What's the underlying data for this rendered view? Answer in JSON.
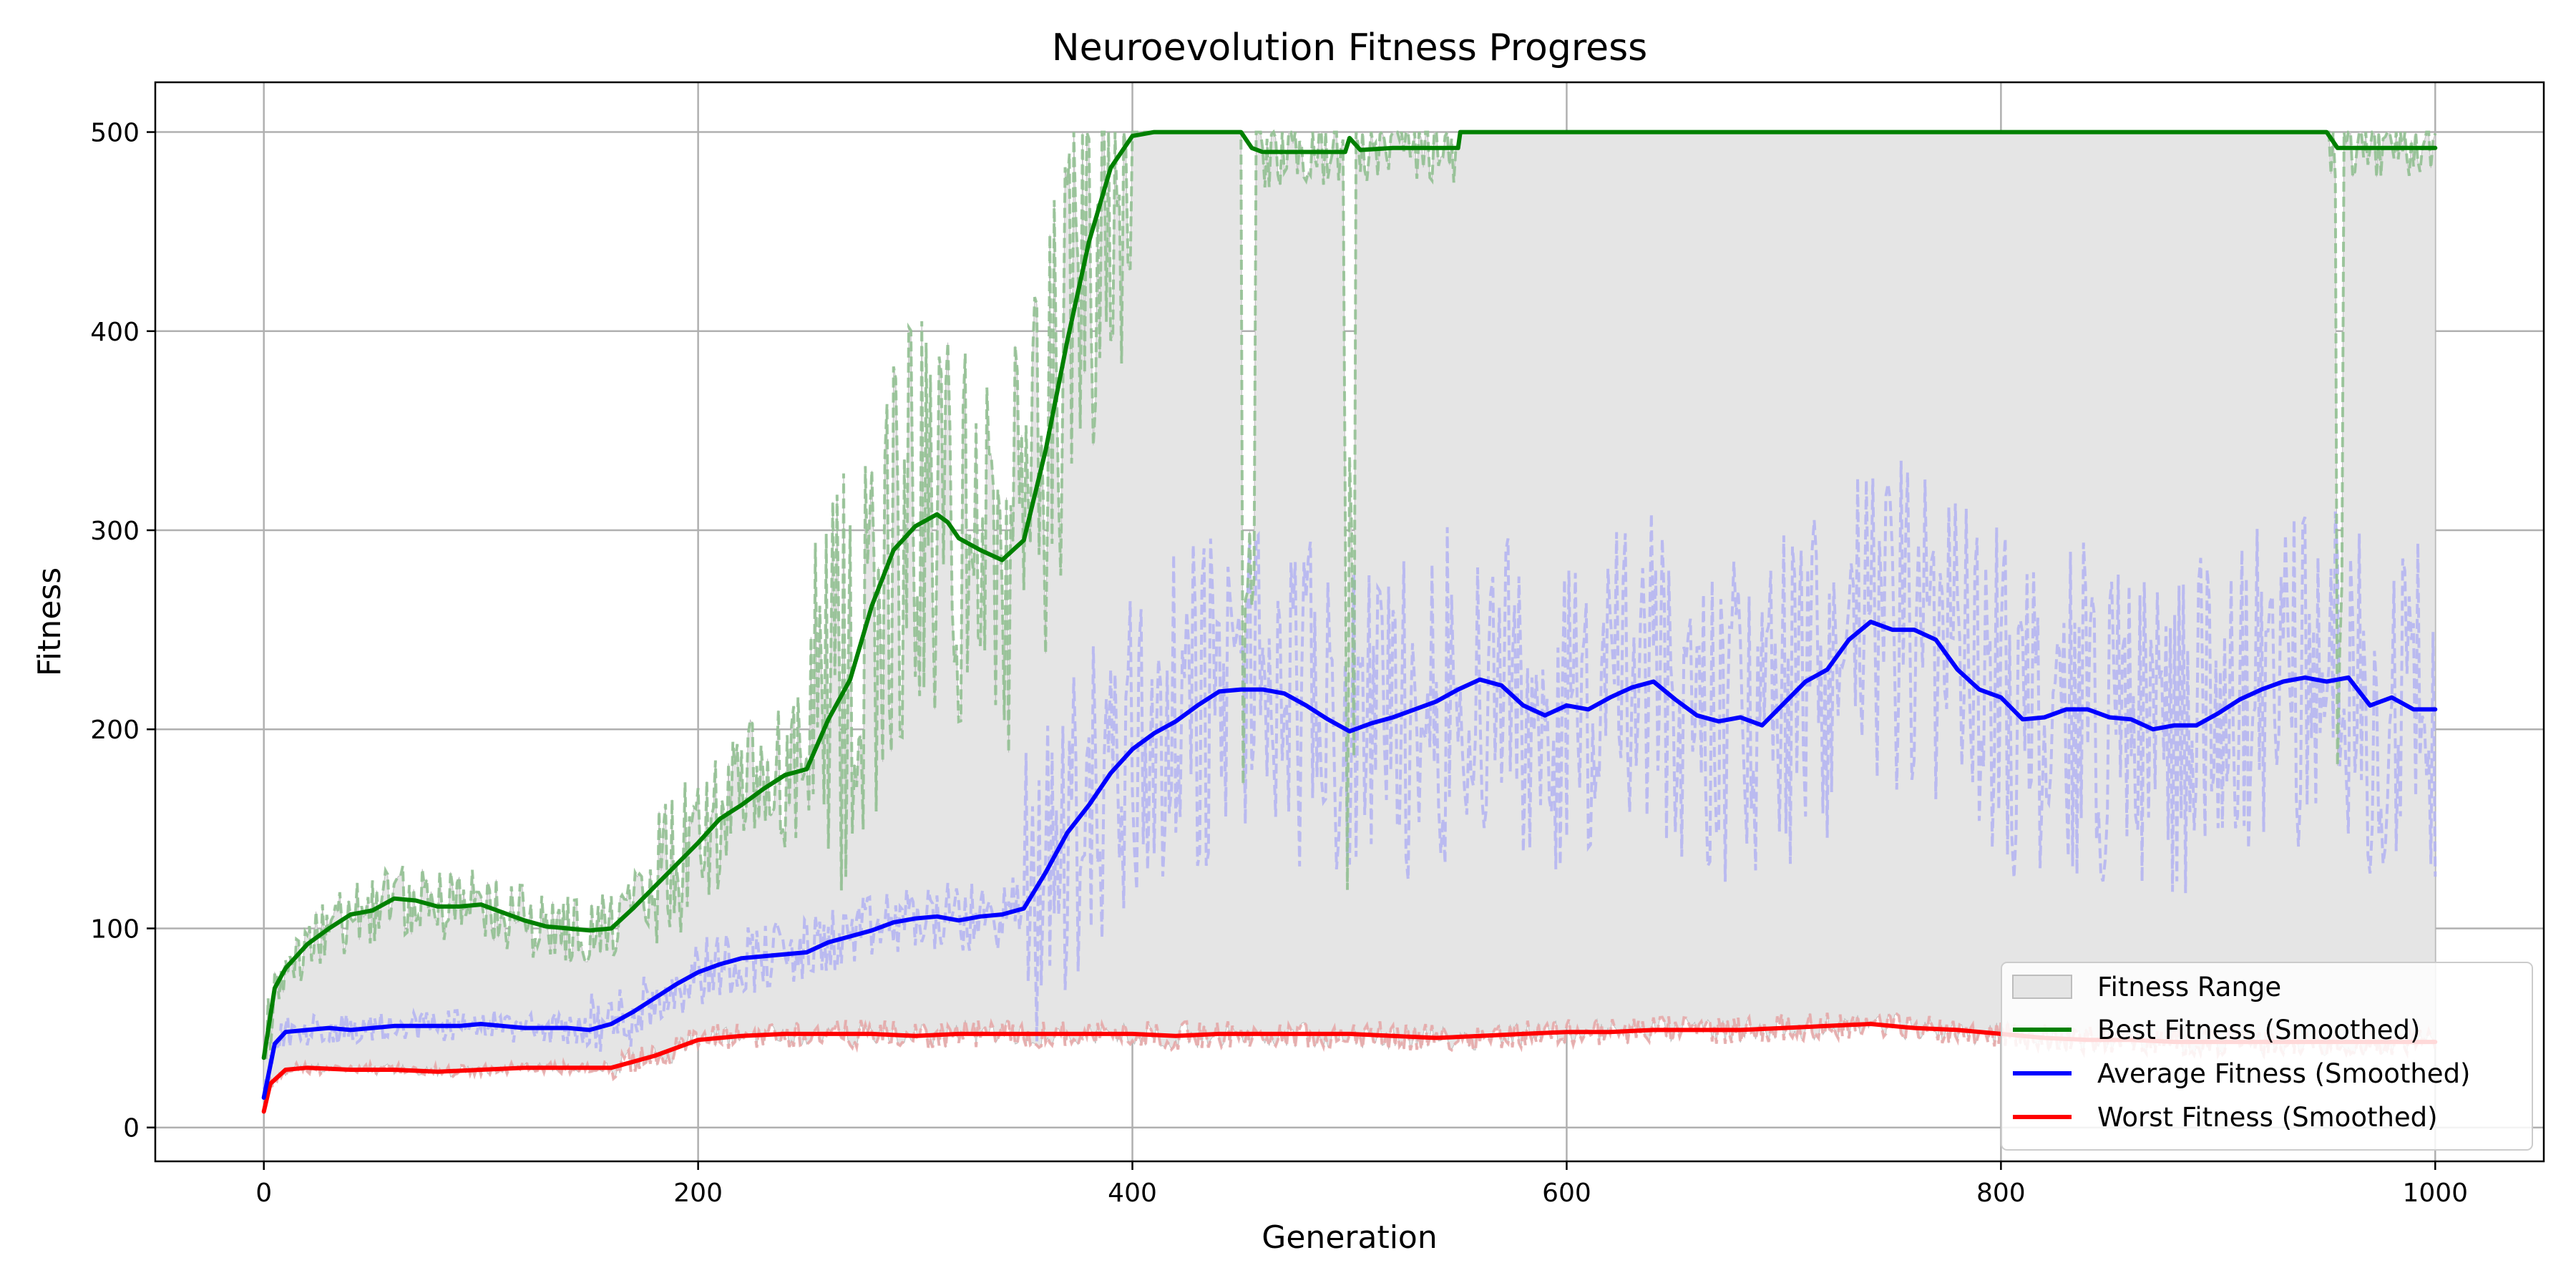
{
  "chart_data": {
    "type": "line",
    "title": "Neuroevolution Fitness Progress",
    "xlabel": "Generation",
    "ylabel": "Fitness",
    "xlim": [
      -50,
      1050
    ],
    "ylim": [
      -17,
      525
    ],
    "xticks": [
      0,
      200,
      400,
      600,
      800,
      1000
    ],
    "yticks": [
      0,
      100,
      200,
      300,
      400,
      500
    ],
    "grid": true,
    "legend_position": "lower-right",
    "legend": [
      "Fitness Range",
      "Best Fitness (Smoothed)",
      "Average Fitness (Smoothed)",
      "Worst Fitness (Smoothed)"
    ],
    "fill": {
      "name": "Fitness Range",
      "color": "#e5e5e5",
      "edge": "#bdbdbd"
    },
    "series": [
      {
        "name": "Best Fitness (Smoothed)",
        "color": "#008000",
        "raw_color": "#8fbf8f",
        "x": [
          0,
          5,
          10,
          20,
          30,
          40,
          50,
          60,
          70,
          80,
          90,
          100,
          110,
          120,
          130,
          140,
          150,
          160,
          170,
          180,
          190,
          200,
          210,
          220,
          230,
          240,
          250,
          260,
          270,
          280,
          290,
          300,
          310,
          315,
          320,
          330,
          340,
          350,
          360,
          370,
          380,
          390,
          400,
          410,
          420,
          440,
          450,
          455,
          460,
          470,
          480,
          490,
          498,
          500,
          505,
          520,
          540,
          550,
          551,
          600,
          700,
          800,
          900,
          950,
          955,
          1000
        ],
        "y": [
          35,
          70,
          80,
          92,
          100,
          107,
          109,
          115,
          114,
          111,
          111,
          112,
          108,
          104,
          101,
          100,
          99,
          100,
          110,
          121,
          132,
          143,
          155,
          162,
          170,
          177,
          180,
          205,
          225,
          262,
          290,
          302,
          308,
          304,
          296,
          290,
          285,
          295,
          340,
          395,
          445,
          482,
          498,
          500,
          500,
          500,
          500,
          492,
          490,
          490,
          490,
          490,
          490,
          497,
          491,
          492,
          492,
          492,
          500,
          500,
          500,
          500,
          500,
          500,
          492,
          492
        ]
      },
      {
        "name": "Average Fitness (Smoothed)",
        "color": "#0000ff",
        "raw_color": "#b3b3f2",
        "x": [
          0,
          5,
          10,
          20,
          30,
          40,
          50,
          60,
          70,
          80,
          90,
          100,
          110,
          120,
          130,
          140,
          150,
          160,
          170,
          180,
          190,
          200,
          210,
          220,
          230,
          240,
          250,
          260,
          270,
          280,
          290,
          300,
          310,
          320,
          330,
          340,
          350,
          360,
          370,
          380,
          390,
          400,
          410,
          420,
          430,
          440,
          450,
          460,
          470,
          480,
          490,
          500,
          510,
          520,
          530,
          540,
          550,
          560,
          570,
          580,
          590,
          600,
          610,
          620,
          630,
          640,
          650,
          660,
          670,
          680,
          690,
          700,
          710,
          720,
          730,
          740,
          750,
          760,
          770,
          780,
          790,
          800,
          810,
          820,
          830,
          840,
          850,
          860,
          870,
          880,
          890,
          900,
          910,
          920,
          930,
          940,
          950,
          960,
          970,
          980,
          990,
          1000
        ],
        "y": [
          15,
          42,
          48,
          49,
          50,
          49,
          50,
          51,
          51,
          51,
          51,
          52,
          51,
          50,
          50,
          50,
          49,
          52,
          58,
          65,
          72,
          78,
          82,
          85,
          86,
          87,
          88,
          93,
          96,
          99,
          103,
          105,
          106,
          104,
          106,
          107,
          110,
          128,
          148,
          162,
          178,
          190,
          198,
          204,
          212,
          219,
          220,
          220,
          218,
          212,
          205,
          199,
          203,
          206,
          210,
          214,
          220,
          225,
          222,
          212,
          207,
          212,
          210,
          216,
          221,
          224,
          215,
          207,
          204,
          206,
          202,
          213,
          224,
          230,
          245,
          254,
          250,
          250,
          245,
          230,
          220,
          216,
          205,
          206,
          210,
          210,
          206,
          205,
          200,
          202,
          202,
          208,
          215,
          220,
          224,
          226,
          224,
          226,
          212,
          216,
          210,
          210
        ]
      },
      {
        "name": "Worst Fitness (Smoothed)",
        "color": "#ff0000",
        "raw_color": "#e8a8a8",
        "x": [
          0,
          3,
          10,
          20,
          40,
          60,
          80,
          100,
          120,
          140,
          160,
          180,
          200,
          220,
          240,
          260,
          280,
          300,
          320,
          340,
          360,
          380,
          400,
          420,
          440,
          460,
          480,
          500,
          520,
          540,
          560,
          580,
          600,
          620,
          640,
          660,
          680,
          700,
          720,
          740,
          760,
          780,
          800,
          820,
          840,
          860,
          880,
          900,
          920,
          940,
          960,
          980,
          1000
        ],
        "y": [
          8,
          22,
          29,
          30,
          29,
          29,
          28,
          29,
          30,
          30,
          30,
          36,
          44,
          46,
          47,
          47,
          47,
          46,
          47,
          47,
          47,
          47,
          47,
          46,
          47,
          47,
          47,
          47,
          46,
          45,
          46,
          47,
          48,
          48,
          49,
          49,
          49,
          50,
          51,
          52,
          50,
          49,
          47,
          45,
          44,
          44,
          43,
          43,
          43,
          43,
          43,
          43,
          43
        ]
      }
    ]
  }
}
